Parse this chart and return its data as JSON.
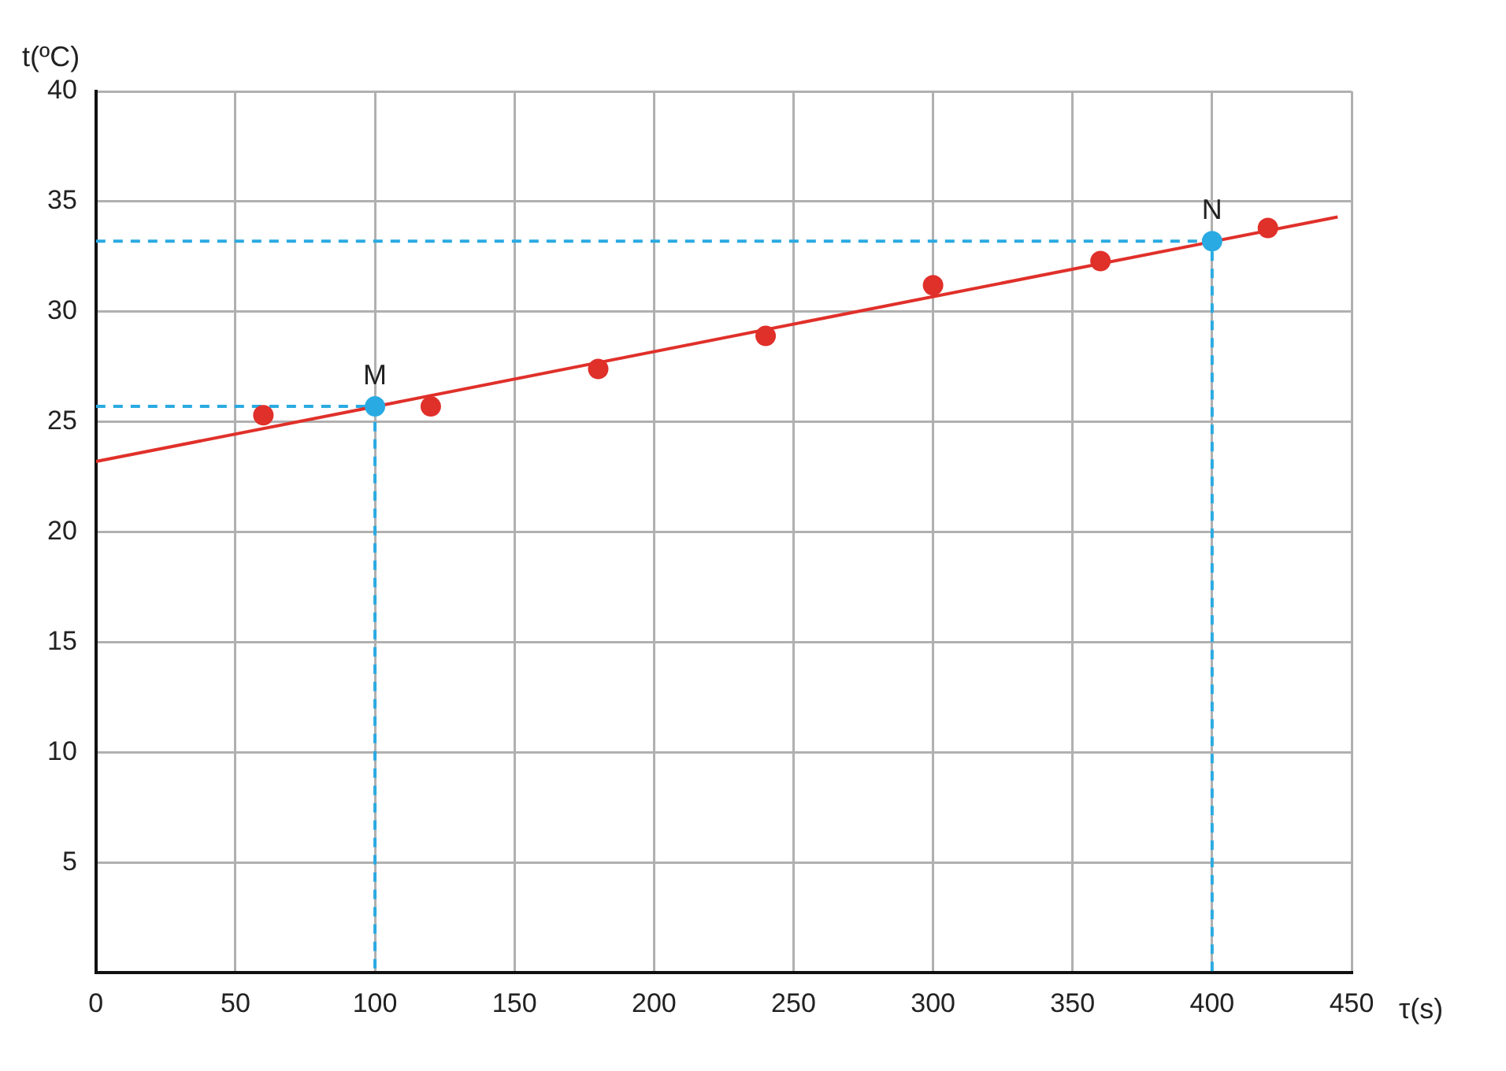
{
  "chart_data": {
    "type": "scatter",
    "xlabel": "τ(s)",
    "ylabel": "t(ºC)",
    "xlim": [
      0,
      450
    ],
    "xticks": [
      0,
      50,
      100,
      150,
      200,
      250,
      300,
      350,
      400,
      450
    ],
    "ylim": [
      0,
      40
    ],
    "yticks": [
      {
        "value": 0,
        "label": null
      },
      5,
      10,
      15,
      20,
      25,
      30,
      35,
      40
    ],
    "grid": true,
    "marker": "circle",
    "series": [
      {
        "type": "line",
        "color": "#e0302a",
        "x": [
          0,
          445
        ],
        "values": [
          23.2,
          34.3
        ],
        "marker": "none",
        "line_style": "solid"
      },
      {
        "type": "line",
        "color": "#2aaae2",
        "x": [
          0,
          100,
          100
        ],
        "values": [
          25.7,
          25.7,
          0
        ],
        "marker": "none",
        "line_style": "dashed"
      },
      {
        "type": "line",
        "color": "#2aaae2",
        "x": [
          0,
          400,
          400
        ],
        "values": [
          33.2,
          33.2,
          0
        ],
        "marker": "none",
        "line_style": "dashed"
      },
      {
        "type": "scatter",
        "color": "#e0302a",
        "x": [
          60,
          120,
          180,
          240,
          300,
          360,
          420
        ],
        "values": [
          25.3,
          25.7,
          27.4,
          28.9,
          31.2,
          32.3,
          33.8
        ]
      },
      {
        "type": "scatter",
        "color": "#2aaae2",
        "x": [
          100,
          400
        ],
        "values": [
          25.7,
          33.2
        ]
      }
    ],
    "annotations": [
      {
        "text": "M",
        "x": 100,
        "y": 25.7
      },
      {
        "text": "N",
        "x": 400,
        "y": 33.2
      }
    ]
  }
}
